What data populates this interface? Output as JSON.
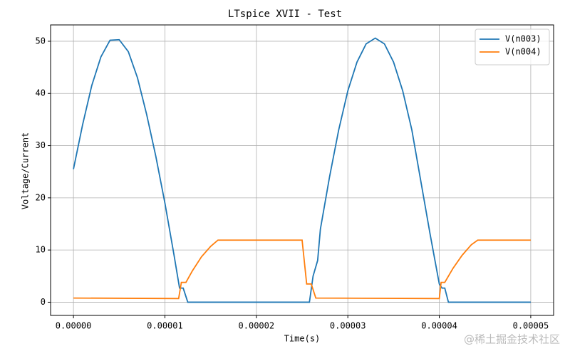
{
  "chart_data": {
    "type": "line",
    "title": "LTspice XVII - Test",
    "xlabel": "Time(s)",
    "ylabel": "Voltage/Current",
    "series": [
      {
        "name": "V(n003)",
        "color": "#1f77b4",
        "x": [
          0,
          1e-06,
          2e-06,
          3e-06,
          4e-06,
          5e-06,
          6e-06,
          7e-06,
          8e-06,
          9e-06,
          1e-05,
          1.1e-05,
          1.16e-05,
          1.2e-05,
          1.25e-05,
          2.58e-05,
          2.62e-05,
          2.67e-05,
          2.7e-05,
          2.8e-05,
          2.9e-05,
          3e-05,
          3.1e-05,
          3.2e-05,
          3.3e-05,
          3.4e-05,
          3.5e-05,
          3.6e-05,
          3.7e-05,
          3.8e-05,
          3.9e-05,
          4e-05,
          4.03e-05,
          4.06e-05,
          4.1e-05,
          5e-05
        ],
        "values": [
          25.5,
          34,
          41.5,
          47,
          50.2,
          50.3,
          48,
          43,
          36,
          28,
          19,
          9,
          2.7,
          2.7,
          0,
          0,
          5,
          8,
          14,
          24,
          33,
          40.5,
          46,
          49.5,
          50.6,
          49.5,
          46,
          40.5,
          33,
          23,
          13,
          3.5,
          2.7,
          2.7,
          0,
          0
        ]
      },
      {
        "name": "V(n004)",
        "color": "#ff7f0e",
        "x": [
          0,
          1.15e-05,
          1.18e-05,
          1.23e-05,
          1.3e-05,
          1.4e-05,
          1.5e-05,
          1.58e-05,
          2.5e-05,
          2.55e-05,
          2.6e-05,
          2.65e-05,
          4e-05,
          4.02e-05,
          4.06e-05,
          4.15e-05,
          4.25e-05,
          4.35e-05,
          4.42e-05,
          5e-05
        ],
        "values": [
          0.8,
          0.7,
          3.8,
          3.8,
          6,
          8.7,
          10.7,
          11.9,
          11.9,
          3.5,
          3.5,
          0.8,
          0.7,
          3.8,
          3.8,
          6.5,
          9,
          11,
          11.9,
          11.9
        ]
      }
    ],
    "xlim": [
      -2.5e-06,
      5.25e-05
    ],
    "xticks": [
      {
        "value": 0,
        "label": "0.00000"
      },
      {
        "value": 1e-05,
        "label": "0.00001"
      },
      {
        "value": 2e-05,
        "label": "0.00002"
      },
      {
        "value": 3e-05,
        "label": "0.00003"
      },
      {
        "value": 4e-05,
        "label": "0.00004"
      },
      {
        "value": 5e-05,
        "label": "0.00005"
      }
    ],
    "ylim": [
      -2.53,
      53.13
    ],
    "yticks": [
      0,
      10,
      20,
      30,
      40,
      50
    ],
    "grid": true,
    "legend": "upper-right"
  },
  "watermark": "@稀土掘金技术社区"
}
